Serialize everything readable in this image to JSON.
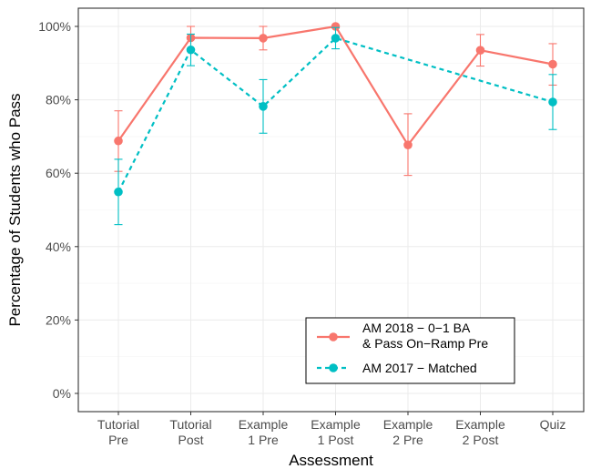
{
  "chart_data": {
    "type": "line",
    "xlabel": "Assessment",
    "ylabel": "Percentage of Students who Pass",
    "categories": [
      [
        "Tutorial",
        "Pre"
      ],
      [
        "Tutorial",
        "Post"
      ],
      [
        "Example",
        "1 Pre"
      ],
      [
        "Example",
        "1 Post"
      ],
      [
        "Example",
        "2 Pre"
      ],
      [
        "Example",
        "2 Post"
      ],
      [
        "Quiz"
      ]
    ],
    "ylim": [
      0,
      100
    ],
    "yticks": [
      0,
      20,
      40,
      60,
      80,
      100
    ],
    "ytick_labels": [
      "0%",
      "20%",
      "40%",
      "60%",
      "80%",
      "100%"
    ],
    "grid": true,
    "legend_position": "bottom-right",
    "series": [
      {
        "name": [
          "AM 2018 − 0−1 BA",
          "& Pass On−Ramp Pre"
        ],
        "color": "#f8766d",
        "dash": "solid",
        "values": [
          68.8,
          96.9,
          96.8,
          100.0,
          67.7,
          93.5,
          89.7
        ],
        "err_low": [
          60.5,
          93.8,
          93.6,
          100.0,
          59.4,
          89.2,
          84.0
        ],
        "err_high": [
          77.0,
          100.0,
          100.0,
          100.0,
          76.2,
          97.8,
          95.3
        ]
      },
      {
        "name": [
          "AM 2017 − Matched"
        ],
        "color": "#00bfc4",
        "dash": "dashed",
        "values": [
          54.9,
          93.6,
          78.2,
          96.8,
          null,
          null,
          79.4
        ],
        "err_low": [
          46.0,
          89.3,
          70.9,
          93.9,
          null,
          null,
          71.9
        ],
        "err_high": [
          63.8,
          97.9,
          85.5,
          99.7,
          null,
          null,
          86.9
        ]
      }
    ]
  }
}
